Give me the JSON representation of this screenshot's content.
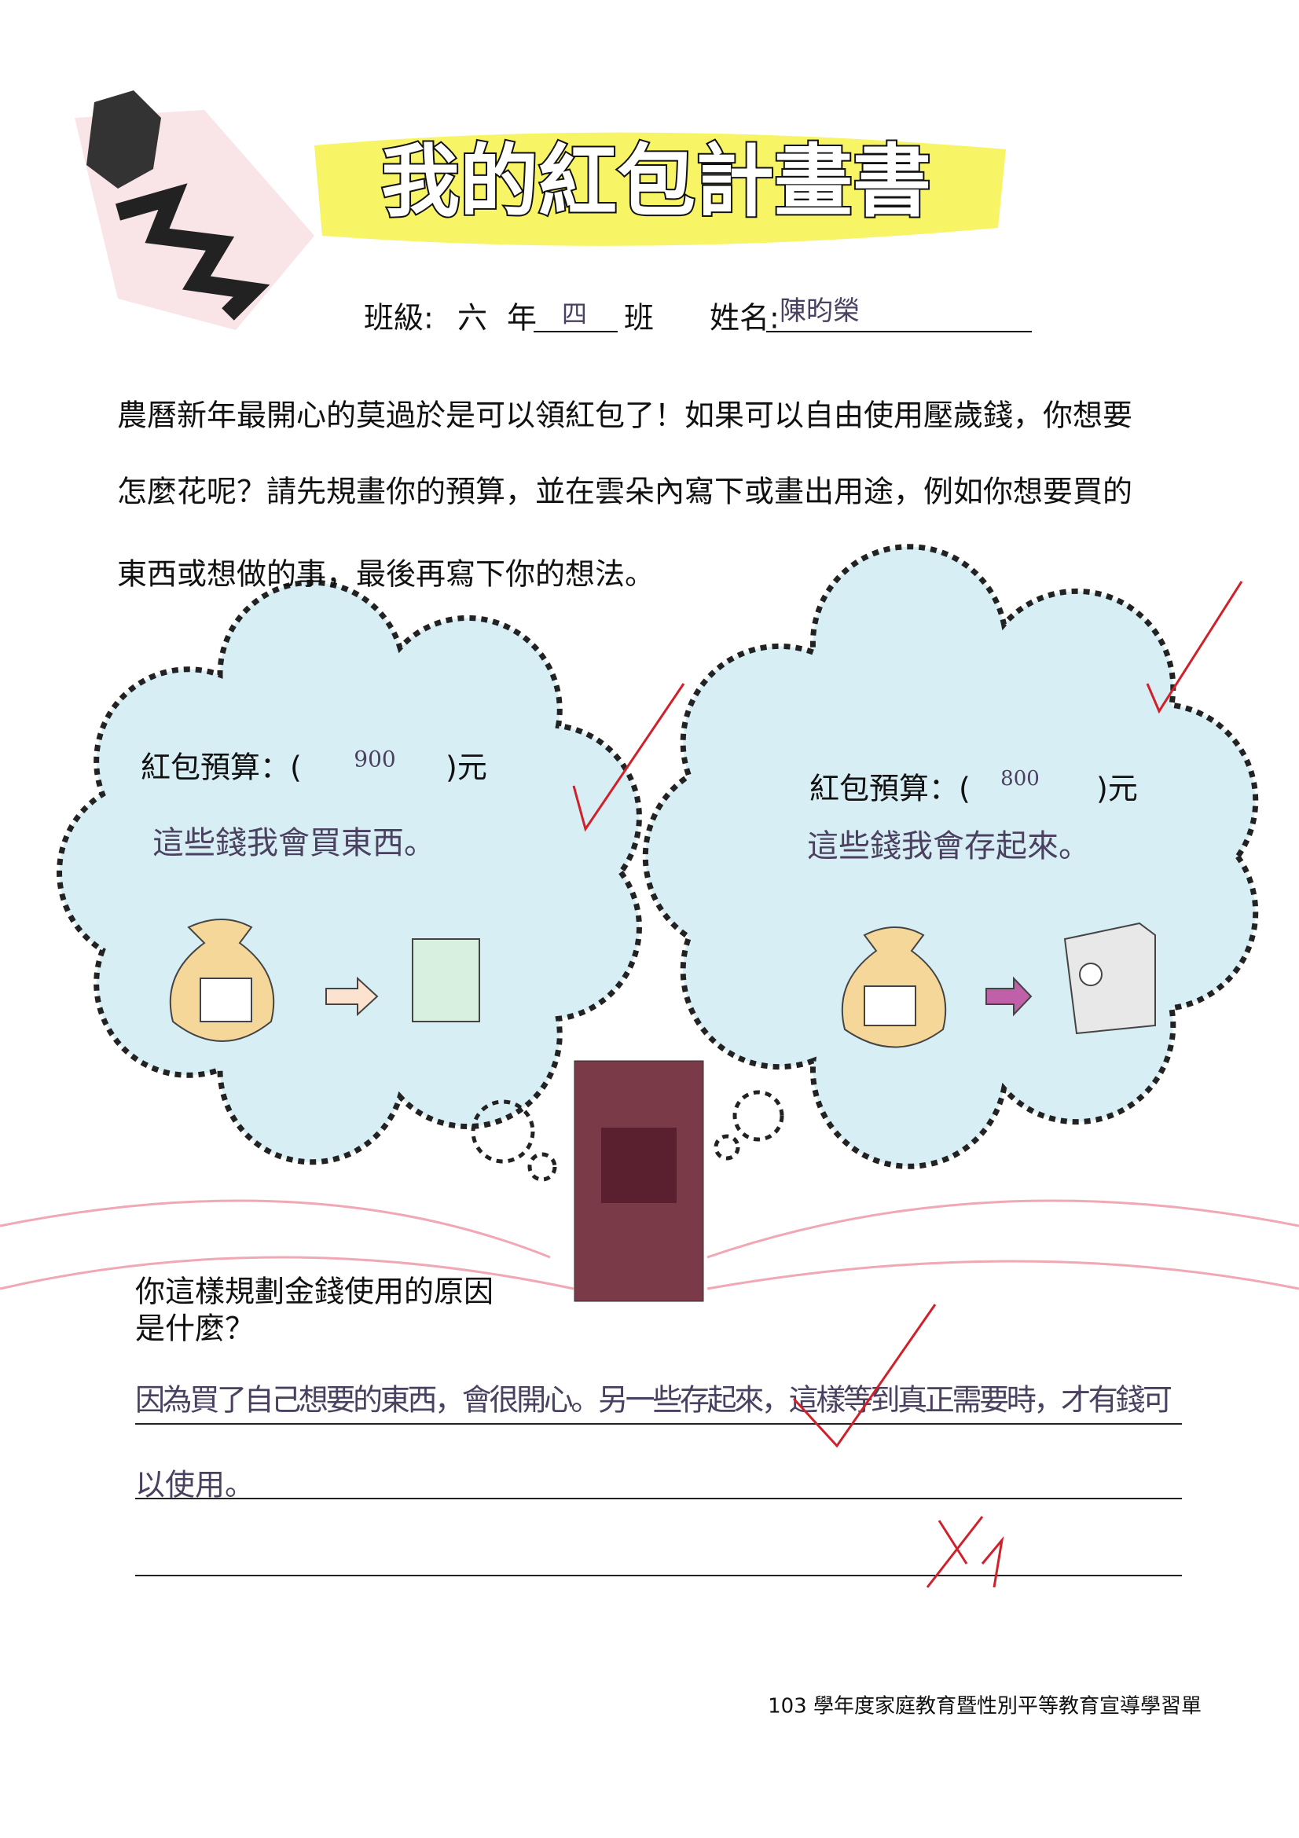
{
  "title": "我的紅包計畫書",
  "header": {
    "class_label": "班級:",
    "grade": "六",
    "grade_unit": "年",
    "class_number": "四",
    "class_unit": "班",
    "name_label": "姓名:",
    "name": "陳昀榮"
  },
  "intro": [
    "農曆新年最開心的莫過於是可以領紅包了！如果可以自由使用壓歲錢，你想要",
    "怎麼花呢？請先規畫你的預算，並在雲朵內寫下或畫出用途，例如你想要買的",
    "東西或想做的事，最後再寫下你的想法。"
  ],
  "clouds": [
    {
      "budget_label": "紅包預算：(",
      "budget": 900,
      "budget_unit": ")元",
      "note": "這些錢我會買東西。"
    },
    {
      "budget_label": "紅包預算：(",
      "budget": 800,
      "budget_unit": ")元",
      "note": "這些錢我會存起來。"
    }
  ],
  "question": [
    "你這樣規劃金錢使用的原因",
    "是什麼？"
  ],
  "answer": [
    "因為買了自己想要的東西，會很開心。另一些存起來，這樣等到真正需要時，才有錢可",
    "以使用。"
  ],
  "footer": "103 學年度家庭教育暨性別平等教育宣導學習單"
}
